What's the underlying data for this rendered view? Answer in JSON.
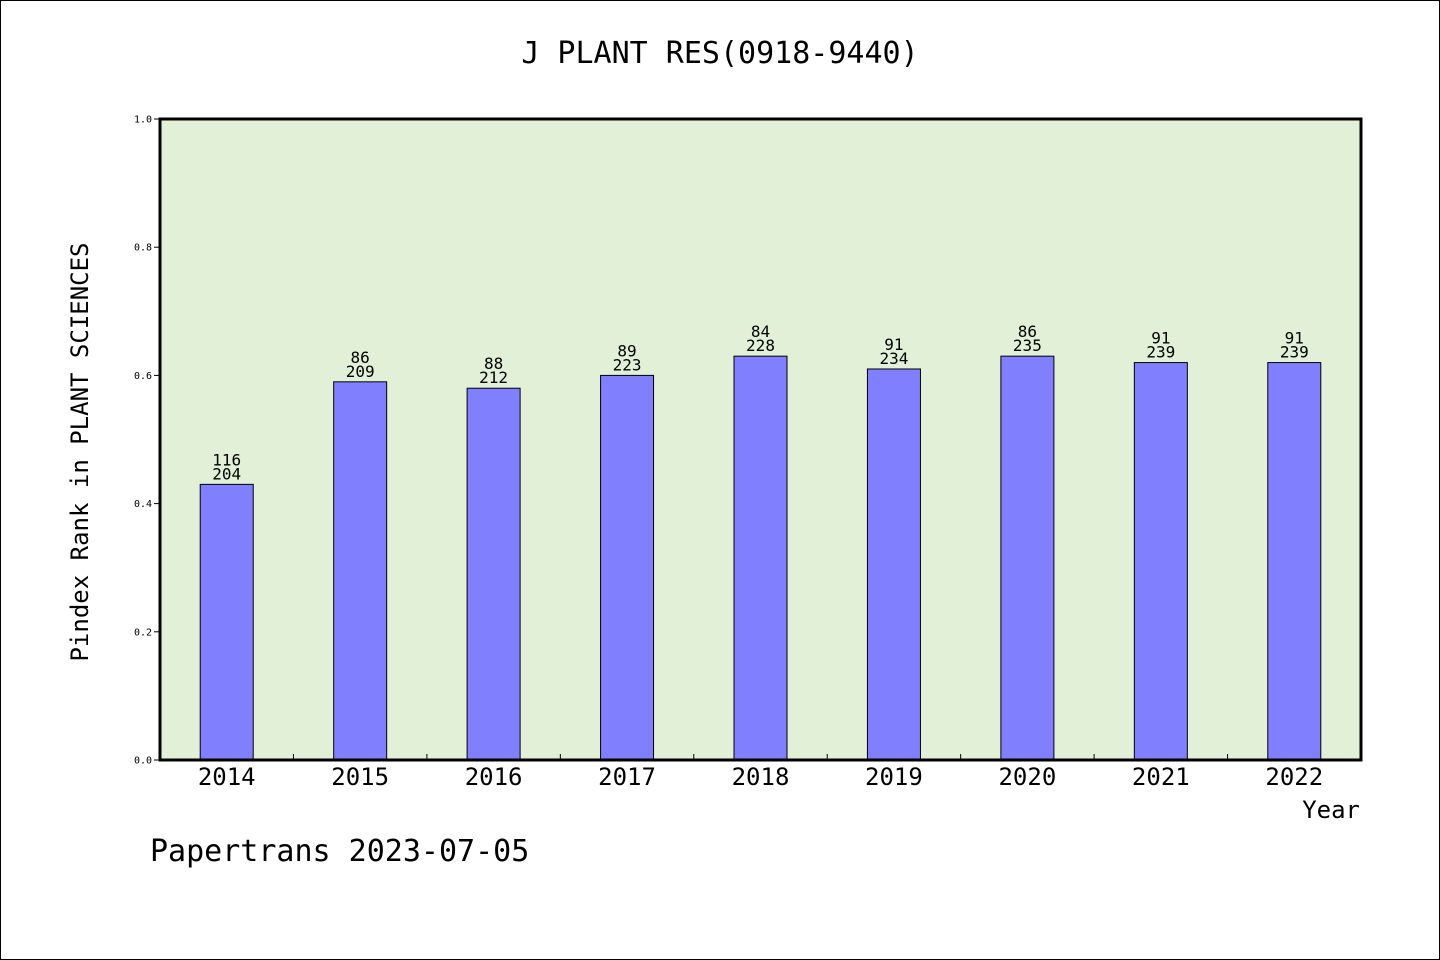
{
  "chart_data": {
    "type": "bar",
    "title": "J PLANT RES(0918-9440)",
    "xlabel": "Year",
    "ylabel": "Pindex Rank in PLANT SCIENCES",
    "footer": "Papertrans 2023-07-05",
    "categories": [
      "2014",
      "2015",
      "2016",
      "2017",
      "2018",
      "2019",
      "2020",
      "2021",
      "2022"
    ],
    "values": [
      0.43,
      0.59,
      0.58,
      0.6,
      0.63,
      0.61,
      0.63,
      0.62,
      0.62
    ],
    "rank_labels": [
      "116",
      "86",
      "88",
      "89",
      "84",
      "91",
      "86",
      "91",
      "91"
    ],
    "total_labels": [
      "204",
      "209",
      "212",
      "223",
      "228",
      "234",
      "235",
      "239",
      "239"
    ],
    "ylim": [
      0,
      1
    ],
    "yticks": [
      "0.0",
      "0.2",
      "0.4",
      "0.6",
      "0.8",
      "1.0"
    ],
    "grid": false,
    "colors": {
      "bar": "#8080ff",
      "plot_background": "#e2f0d7",
      "axis": "#000000"
    }
  }
}
